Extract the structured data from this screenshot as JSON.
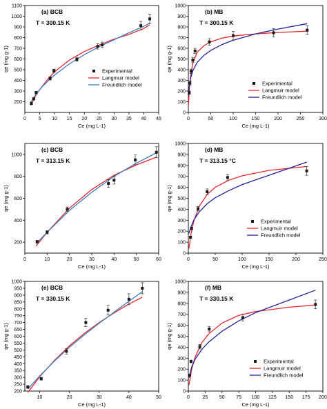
{
  "colors": {
    "experimental": "#1a1a1a",
    "langmuir": "#e8232a",
    "freundlich_bcb": "#3c7fc2",
    "freundlich_mb": "#22209a"
  },
  "chart_data": [
    {
      "type": "scatter",
      "panel": "(a) BCB",
      "annotation": "T = 300.15 K",
      "xlabel": "Ce (mg L-1)",
      "ylabel": "qe (mg g-1)",
      "xlim": [
        0,
        45
      ],
      "ylim": [
        100,
        1100
      ],
      "xticks": [
        0,
        5,
        10,
        15,
        20,
        25,
        30,
        35,
        40,
        45
      ],
      "yticks": [
        200,
        300,
        400,
        500,
        600,
        700,
        800,
        900,
        1000,
        1100
      ],
      "legend_position": "middle-right",
      "series": [
        {
          "name": "Experimental",
          "kind": "points",
          "x": [
            2.2,
            3,
            3.8,
            8.5,
            9.8,
            17.5,
            24.5,
            26,
            39,
            42
          ],
          "y": [
            185,
            228,
            285,
            418,
            490,
            597,
            718,
            732,
            912,
            975
          ],
          "err": [
            12,
            12,
            12,
            15,
            15,
            18,
            25,
            25,
            40,
            45
          ]
        },
        {
          "name": "Langmuir model",
          "kind": "line",
          "x": [
            2,
            4,
            6,
            8,
            10,
            15,
            20,
            25,
            30,
            35,
            40,
            42
          ],
          "y": [
            165,
            275,
            350,
            420,
            480,
            590,
            670,
            730,
            785,
            830,
            885,
            920
          ]
        },
        {
          "name": "Freundlich model",
          "kind": "line",
          "x": [
            2,
            4,
            6,
            8,
            10,
            15,
            20,
            25,
            30,
            35,
            40,
            42
          ],
          "y": [
            195,
            280,
            345,
            400,
            450,
            555,
            640,
            715,
            780,
            845,
            905,
            935
          ]
        }
      ]
    },
    {
      "type": "scatter",
      "panel": "(b) MB",
      "annotation": "T = 300.15 K",
      "xlabel": "Ce (mg L-1)",
      "ylabel": "qe (mg g-1)",
      "xlim": [
        0,
        300
      ],
      "ylim": [
        0,
        1000
      ],
      "xticks": [
        0,
        50,
        100,
        150,
        200,
        250,
        300
      ],
      "yticks": [
        0,
        100,
        200,
        300,
        400,
        500,
        600,
        700,
        800,
        900,
        1000
      ],
      "legend_position": "bottom-right",
      "series": [
        {
          "name": "Experimental",
          "kind": "points",
          "x": [
            2,
            3.5,
            6,
            10,
            15,
            47,
            100,
            190,
            265
          ],
          "y": [
            185,
            275,
            385,
            490,
            575,
            660,
            718,
            745,
            770
          ],
          "err": [
            15,
            18,
            20,
            25,
            25,
            30,
            40,
            40,
            40
          ]
        },
        {
          "name": "Langmuir model",
          "kind": "line",
          "x": [
            0.5,
            2,
            5,
            10,
            20,
            35,
            50,
            75,
            100,
            150,
            200,
            265
          ],
          "y": [
            75,
            210,
            340,
            460,
            565,
            625,
            660,
            695,
            715,
            735,
            748,
            760
          ]
        },
        {
          "name": "Freundlich model",
          "kind": "line",
          "x": [
            0.5,
            2,
            5,
            10,
            20,
            35,
            50,
            75,
            100,
            150,
            200,
            265
          ],
          "y": [
            160,
            240,
            320,
            390,
            470,
            535,
            580,
            635,
            675,
            735,
            780,
            830
          ]
        }
      ]
    },
    {
      "type": "scatter",
      "panel": "(c) BCB",
      "annotation": "T = 313.15 K",
      "xlabel": "Ce (mg L-1)",
      "ylabel": "qe (mg g-1)",
      "xlim": [
        0,
        60
      ],
      "ylim": [
        100,
        1100
      ],
      "xticks": [
        0,
        10,
        20,
        30,
        40,
        50,
        60
      ],
      "yticks": [
        200,
        400,
        600,
        800,
        1000
      ],
      "series": [
        {
          "name": "Experimental",
          "kind": "points",
          "x": [
            5.5,
            10,
            19,
            37.5,
            40,
            49.5,
            59
          ],
          "y": [
            205,
            290,
            500,
            735,
            765,
            950,
            1020
          ],
          "err": [
            10,
            15,
            20,
            35,
            35,
            45,
            50
          ]
        },
        {
          "name": "Langmuir model",
          "kind": "line",
          "x": [
            5,
            10,
            20,
            30,
            40,
            50,
            59
          ],
          "y": [
            165,
            290,
            510,
            680,
            810,
            905,
            975
          ]
        },
        {
          "name": "Freundlich model",
          "kind": "line",
          "x": [
            5,
            10,
            20,
            30,
            40,
            50,
            59
          ],
          "y": [
            185,
            290,
            490,
            655,
            800,
            920,
            1015
          ]
        }
      ]
    },
    {
      "type": "scatter",
      "panel": "(d) MB",
      "annotation": "T = 313.15 °C",
      "xlabel": "Ce (mg L-1)",
      "ylabel": "qe (mg g-1)",
      "xlim": [
        0,
        250
      ],
      "ylim": [
        0,
        1000
      ],
      "xticks": [
        0,
        50,
        100,
        150,
        200,
        250
      ],
      "yticks": [
        0,
        100,
        200,
        300,
        400,
        500,
        600,
        700,
        800,
        900,
        1000
      ],
      "legend_position": "bottom-right",
      "series": [
        {
          "name": "Experimental",
          "kind": "points",
          "x": [
            4,
            6,
            18,
            35,
            73,
            220
          ],
          "y": [
            145,
            225,
            405,
            560,
            690,
            750
          ],
          "err": [
            10,
            12,
            20,
            25,
            30,
            40
          ]
        },
        {
          "name": "Langmuir model",
          "kind": "line",
          "x": [
            1,
            5,
            10,
            20,
            35,
            50,
            75,
            100,
            150,
            220
          ],
          "y": [
            40,
            175,
            290,
            425,
            535,
            600,
            665,
            705,
            755,
            790
          ]
        },
        {
          "name": "Freundlich model",
          "kind": "line",
          "x": [
            1,
            5,
            10,
            20,
            35,
            50,
            75,
            100,
            150,
            220
          ],
          "y": [
            180,
            240,
            300,
            375,
            450,
            505,
            570,
            625,
            710,
            830
          ]
        }
      ]
    },
    {
      "type": "scatter",
      "panel": "(e) BCB",
      "annotation": "T = 330.15 K",
      "xlabel": "Ce (mg L-1)",
      "ylabel": "qe (mg g-1)",
      "xlim": [
        5,
        50
      ],
      "ylim": [
        200,
        1000
      ],
      "xticks": [
        10,
        20,
        30,
        40,
        50
      ],
      "yticks": [
        200,
        250,
        300,
        350,
        400,
        450,
        500,
        550,
        600,
        650,
        700,
        750,
        800,
        850,
        900,
        950,
        1000
      ],
      "series": [
        {
          "name": "Experimental",
          "kind": "points",
          "x": [
            6,
            10.5,
            19,
            25.5,
            33,
            40,
            44.5
          ],
          "y": [
            230,
            290,
            490,
            700,
            790,
            870,
            950
          ],
          "err": [
            10,
            10,
            20,
            30,
            35,
            40,
            40
          ]
        },
        {
          "name": "Langmuir model",
          "kind": "line",
          "x": [
            6,
            10,
            15,
            20,
            25,
            30,
            35,
            40,
            44.5
          ],
          "y": [
            190,
            305,
            425,
            530,
            620,
            700,
            770,
            835,
            885
          ]
        },
        {
          "name": "Freundlich model",
          "kind": "line",
          "x": [
            6,
            10,
            15,
            20,
            25,
            30,
            35,
            40,
            44.5
          ],
          "y": [
            215,
            310,
            420,
            520,
            610,
            695,
            775,
            855,
            925
          ]
        }
      ]
    },
    {
      "type": "scatter",
      "panel": "(f) MB",
      "annotation": "T = 330.15 K",
      "xlabel": "Ce (mg L-1)",
      "ylabel": "qe (mg g-1)",
      "xlim": [
        0,
        200
      ],
      "ylim": [
        0,
        1000
      ],
      "xticks": [
        0,
        25,
        50,
        75,
        100,
        125,
        150,
        175,
        200
      ],
      "yticks": [
        0,
        100,
        200,
        300,
        400,
        500,
        600,
        700,
        800,
        900,
        1000
      ],
      "legend_position": "bottom-right",
      "series": [
        {
          "name": "Experimental",
          "kind": "points",
          "x": [
            2,
            4,
            17,
            31,
            81,
            189
          ],
          "y": [
            145,
            270,
            405,
            565,
            670,
            790
          ],
          "err": [
            10,
            12,
            20,
            25,
            30,
            40
          ]
        },
        {
          "name": "Langmuir model",
          "kind": "line",
          "x": [
            1,
            5,
            10,
            20,
            30,
            50,
            75,
            100,
            150,
            189
          ],
          "y": [
            55,
            200,
            310,
            440,
            520,
            620,
            690,
            725,
            765,
            785
          ]
        },
        {
          "name": "Freundlich model",
          "kind": "line",
          "x": [
            1,
            5,
            10,
            20,
            30,
            50,
            75,
            100,
            150,
            189
          ],
          "y": [
            120,
            220,
            290,
            380,
            445,
            545,
            640,
            715,
            830,
            920
          ]
        }
      ]
    }
  ]
}
